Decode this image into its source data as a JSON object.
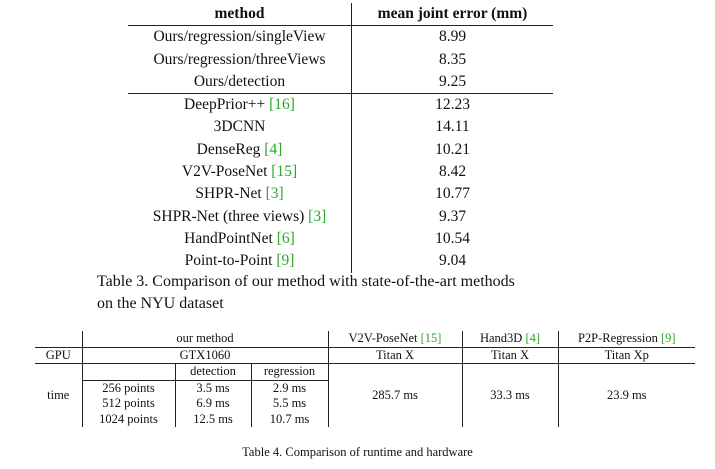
{
  "table3": {
    "header": {
      "method": "method",
      "error": "mean joint error (mm)"
    },
    "group1": [
      {
        "method": "Ours/regression/singleView",
        "cite": "",
        "value": "8.99"
      },
      {
        "method": "Ours/regression/threeViews",
        "cite": "",
        "value": "8.35"
      },
      {
        "method": "Ours/detection",
        "cite": "",
        "value": "9.25"
      }
    ],
    "group2": [
      {
        "method": "DeepPrior++ ",
        "cite": "[16]",
        "value": "12.23"
      },
      {
        "method": "3DCNN",
        "cite": "",
        "value": "14.11"
      },
      {
        "method": "DenseReg ",
        "cite": "[4]",
        "value": "10.21"
      },
      {
        "method": "V2V-PoseNet ",
        "cite": "[15]",
        "value": "8.42"
      },
      {
        "method": "SHPR-Net ",
        "cite": "[3]",
        "value": "10.77"
      },
      {
        "method": "SHPR-Net (three views) ",
        "cite": "[3]",
        "value": "9.37"
      },
      {
        "method": "HandPointNet ",
        "cite": "[6]",
        "value": "10.54"
      },
      {
        "method": "Point-to-Point ",
        "cite": "[9]",
        "value": "9.04"
      }
    ],
    "caption_line1": "Table 3. Comparison of our method with state-of-the-art methods",
    "caption_line2": "on the NYU dataset"
  },
  "table4": {
    "our_method": "our method",
    "v2v": "V2V-PoseNet ",
    "v2v_cite": "[15]",
    "hand3d": "Hand3D ",
    "hand3d_cite": "[4]",
    "p2p": "P2P-Regression ",
    "p2p_cite": "[9]",
    "gpu_label": "GPU",
    "gpu_ours": "GTX1060",
    "gpu_v2v": "Titan X",
    "gpu_hand3d": "Titan X",
    "gpu_p2p": "Titan Xp",
    "detection": "detection",
    "regression": "regression",
    "time_label": "time",
    "points": [
      "256 points",
      "512 points",
      "1024 points"
    ],
    "detection_times": [
      "3.5 ms",
      "6.9 ms",
      "12.5 ms"
    ],
    "regression_times": [
      "2.9 ms",
      "5.5 ms",
      "10.7 ms"
    ],
    "time_v2v": "285.7 ms",
    "time_hand3d": "33.3 ms",
    "time_p2p": "23.9 ms",
    "caption": "Table 4. Comparison of runtime and hardware"
  }
}
